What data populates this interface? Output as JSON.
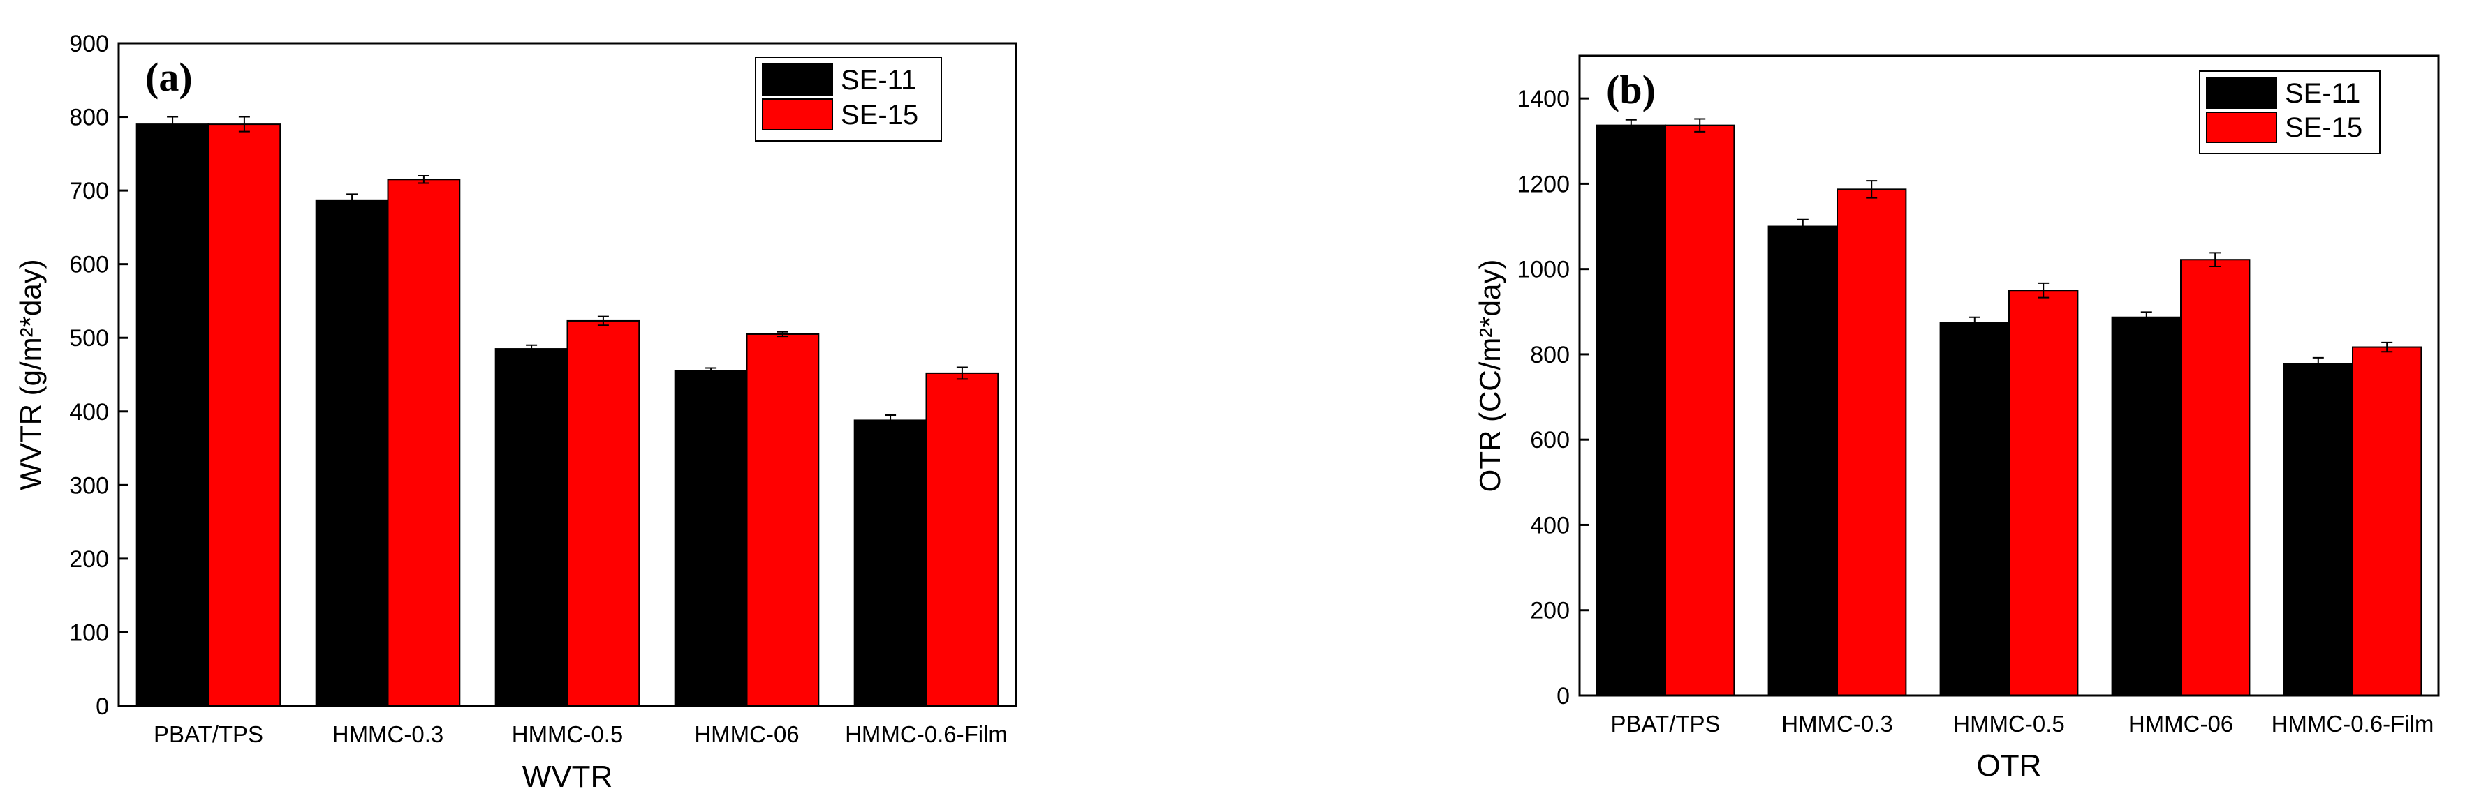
{
  "colors": {
    "SE-11": "#000000",
    "SE-15": "#ff0000"
  },
  "chart_data": [
    {
      "type": "bar",
      "panel_label": "(a)",
      "title": "",
      "xlabel": "WVTR",
      "ylabel": "WVTR (g/m²*day)",
      "ylim": [
        0,
        900
      ],
      "yticks": [
        0,
        100,
        200,
        300,
        400,
        500,
        600,
        700,
        800,
        900
      ],
      "categories": [
        "PBAT/TPS",
        "HMMC-0.3",
        "HMMC-0.5",
        "HMMC-06",
        "HMMC-0.6-Film"
      ],
      "series": [
        {
          "name": "SE-11",
          "color": "#000000",
          "values": [
            790,
            687,
            485,
            455,
            388
          ],
          "errors": [
            10,
            8,
            5,
            4,
            7
          ]
        },
        {
          "name": "SE-15",
          "color": "#ff0000",
          "values": [
            790,
            715,
            523,
            505,
            452
          ],
          "errors": [
            10,
            5,
            6,
            3,
            8
          ]
        }
      ],
      "legend_position": "top-right",
      "grid": false
    },
    {
      "type": "bar",
      "panel_label": "(b)",
      "title": "",
      "xlabel": "OTR",
      "ylabel": "OTR (CC/m²*day)",
      "ylim": [
        0,
        1500
      ],
      "yticks": [
        0,
        200,
        400,
        600,
        800,
        1000,
        1200,
        1400
      ],
      "categories": [
        "PBAT/TPS",
        "HMMC-0.3",
        "HMMC-0.5",
        "HMMC-06",
        "HMMC-0.6-Film"
      ],
      "series": [
        {
          "name": "SE-11",
          "color": "#000000",
          "values": [
            1337,
            1100,
            875,
            887,
            778
          ],
          "errors": [
            13,
            16,
            12,
            12,
            14
          ]
        },
        {
          "name": "SE-15",
          "color": "#ff0000",
          "values": [
            1337,
            1187,
            950,
            1022,
            817
          ],
          "errors": [
            15,
            20,
            17,
            16,
            11
          ]
        }
      ],
      "legend_position": "top-right",
      "grid": false
    }
  ]
}
